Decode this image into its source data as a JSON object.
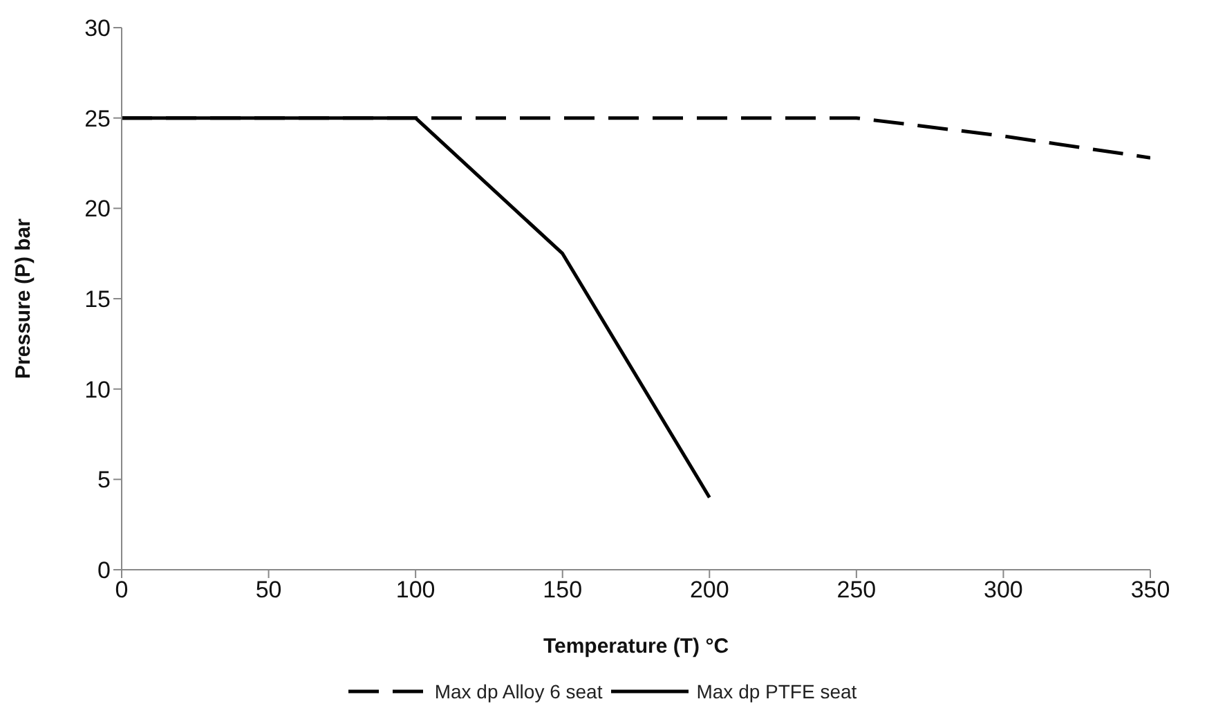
{
  "chart_data": {
    "type": "line",
    "xlabel": "Temperature (T) °C",
    "ylabel": "Pressure (P) bar",
    "xlim": [
      0,
      350
    ],
    "xticks": [
      0,
      50,
      100,
      150,
      200,
      250,
      300,
      350
    ],
    "ylim": [
      0,
      30
    ],
    "yticks": [
      0,
      5,
      10,
      15,
      20,
      25,
      30
    ],
    "grid": false,
    "legend": "bottom",
    "marker": "none",
    "series": [
      {
        "name": "Max dp Alloy 6 seat",
        "color": "#000000",
        "line_style": "dashed",
        "x": [
          0,
          100,
          250,
          300,
          350
        ],
        "values": [
          25,
          25,
          25,
          24,
          22.8
        ]
      },
      {
        "name": "Max dp PTFE seat",
        "color": "#000000",
        "line_style": "solid",
        "x": [
          0,
          100,
          150,
          200
        ],
        "values": [
          25,
          25,
          17.5,
          4
        ]
      }
    ]
  }
}
